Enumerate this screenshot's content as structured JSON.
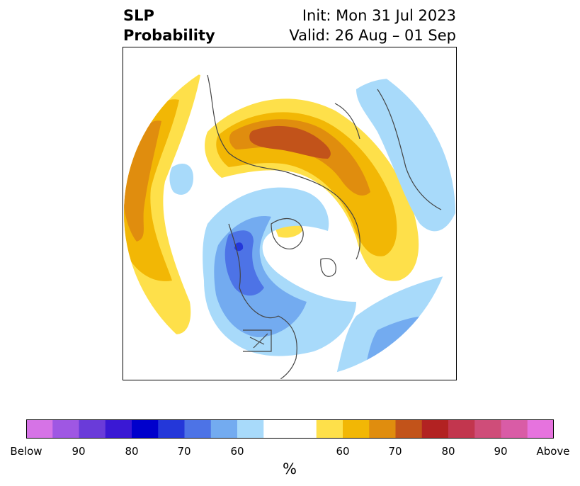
{
  "header": {
    "title_line1": "SLP",
    "title_line2": "Probability",
    "init": "Init: Mon 31 Jul 2023",
    "valid": "Valid: 26 Aug – 01 Sep"
  },
  "colorbar": {
    "colors": [
      "#d673e6",
      "#9f57e3",
      "#6a3bd9",
      "#3a18d4",
      "#0000cc",
      "#2437d9",
      "#4d73e6",
      "#73abf0",
      "#a8dafa",
      "#ffffff",
      "#ffffff",
      "#fee04a",
      "#f2b705",
      "#e08d0e",
      "#c2531a",
      "#b22222",
      "#c2364e",
      "#cf4d79",
      "#d95ca6",
      "#e673de"
    ],
    "tick_labels": [
      "Below",
      "90",
      "80",
      "70",
      "60",
      "60",
      "70",
      "80",
      "90",
      "Above"
    ],
    "unit_label": "%"
  },
  "map": {
    "legend_colors": {
      "above_60": "#fee04a",
      "above_65": "#f2b705",
      "above_70": "#e08d0e",
      "above_75": "#c2531a",
      "below_60": "#a8dafa",
      "below_65": "#73abf0",
      "below_70": "#4d73e6",
      "below_75": "#2437d9",
      "coast": "#444444"
    }
  }
}
